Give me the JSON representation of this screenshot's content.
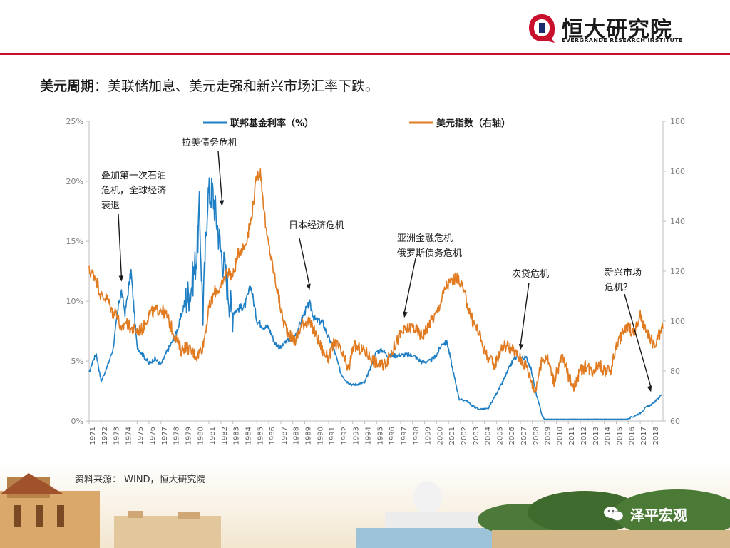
{
  "header": {
    "brand_cn": "恒大研究院",
    "brand_en": "EVERGRANDE RESEARCH INSTITUTE",
    "accent_color": "#c8102e"
  },
  "slide": {
    "title_bold": "美元周期",
    "title_rest": "：美联储加息、美元走强和新兴市场汇率下跌。",
    "source": "资料来源：  WIND，恒大研究院",
    "wechat": "泽平宏观"
  },
  "chart_data": {
    "type": "line",
    "title": "",
    "x_range": [
      1971,
      2018.9
    ],
    "x_ticks": [
      "1971",
      "1972",
      "1973",
      "1974",
      "1975",
      "1976",
      "1977",
      "1978",
      "1979",
      "1980",
      "1981",
      "1982",
      "1983",
      "1984",
      "1985",
      "1986",
      "1987",
      "1988",
      "1989",
      "1990",
      "1991",
      "1992",
      "1993",
      "1994",
      "1995",
      "1996",
      "1997",
      "1998",
      "1999",
      "2000",
      "2001",
      "2002",
      "2003",
      "2004",
      "2005",
      "2006",
      "2007",
      "2008",
      "2009",
      "2010",
      "2011",
      "2012",
      "2013",
      "2014",
      "2015",
      "2016",
      "2017",
      "2018"
    ],
    "y_left": {
      "range": [
        0,
        25
      ],
      "ticks": [
        "0%",
        "5%",
        "10%",
        "15%",
        "20%",
        "25%"
      ],
      "tick_values": [
        0,
        5,
        10,
        15,
        20,
        25
      ]
    },
    "y_right": {
      "range": [
        60,
        180
      ],
      "ticks": [
        "60",
        "80",
        "100",
        "120",
        "140",
        "160",
        "180"
      ],
      "tick_values": [
        60,
        80,
        100,
        120,
        140,
        160,
        180
      ]
    },
    "grid": false,
    "legend_position": "top-center",
    "series": [
      {
        "name": "联邦基金利率（%）",
        "axis": "left",
        "color": "#1f7fc4",
        "points": [
          [
            1971.0,
            4.0
          ],
          [
            1971.3,
            5.0
          ],
          [
            1971.6,
            5.6
          ],
          [
            1972.0,
            3.3
          ],
          [
            1972.5,
            4.5
          ],
          [
            1973.0,
            6.0
          ],
          [
            1973.5,
            10.0
          ],
          [
            1973.7,
            10.8
          ],
          [
            1974.0,
            9.0
          ],
          [
            1974.5,
            12.5
          ],
          [
            1975.0,
            6.2
          ],
          [
            1975.5,
            5.5
          ],
          [
            1976.0,
            4.8
          ],
          [
            1976.5,
            5.2
          ],
          [
            1977.0,
            4.7
          ],
          [
            1977.5,
            5.8
          ],
          [
            1978.0,
            6.7
          ],
          [
            1978.5,
            8.0
          ],
          [
            1979.0,
            10.0
          ],
          [
            1979.5,
            11.0
          ],
          [
            1980.0,
            14.0
          ],
          [
            1980.2,
            17.6
          ],
          [
            1980.5,
            9.0
          ],
          [
            1980.9,
            18.9
          ],
          [
            1981.3,
            19.1
          ],
          [
            1981.5,
            17.8
          ],
          [
            1982.0,
            14.2
          ],
          [
            1982.5,
            11.6
          ],
          [
            1982.9,
            9.0
          ],
          [
            1983.5,
            9.4
          ],
          [
            1984.0,
            9.6
          ],
          [
            1984.5,
            11.3
          ],
          [
            1985.0,
            8.4
          ],
          [
            1985.5,
            7.9
          ],
          [
            1986.0,
            7.8
          ],
          [
            1986.5,
            6.5
          ],
          [
            1987.0,
            6.1
          ],
          [
            1987.5,
            6.7
          ],
          [
            1988.0,
            6.8
          ],
          [
            1988.5,
            7.8
          ],
          [
            1989.0,
            9.1
          ],
          [
            1989.4,
            9.8
          ],
          [
            1989.8,
            8.5
          ],
          [
            1990.5,
            8.2
          ],
          [
            1991.0,
            6.9
          ],
          [
            1991.5,
            5.8
          ],
          [
            1992.0,
            4.0
          ],
          [
            1992.5,
            3.3
          ],
          [
            1993.0,
            3.0
          ],
          [
            1994.0,
            3.2
          ],
          [
            1994.5,
            4.5
          ],
          [
            1995.0,
            5.8
          ],
          [
            1995.5,
            5.9
          ],
          [
            1996.0,
            5.4
          ],
          [
            1997.0,
            5.5
          ],
          [
            1998.0,
            5.5
          ],
          [
            1998.8,
            4.9
          ],
          [
            1999.5,
            5.0
          ],
          [
            2000.0,
            5.5
          ],
          [
            2000.5,
            6.5
          ],
          [
            2000.9,
            6.5
          ],
          [
            2001.3,
            4.5
          ],
          [
            2001.9,
            1.8
          ],
          [
            2002.5,
            1.7
          ],
          [
            2003.0,
            1.25
          ],
          [
            2003.5,
            1.0
          ],
          [
            2004.3,
            1.0
          ],
          [
            2005.0,
            2.3
          ],
          [
            2005.5,
            3.2
          ],
          [
            2006.0,
            4.3
          ],
          [
            2006.5,
            5.25
          ],
          [
            2007.5,
            5.25
          ],
          [
            2007.9,
            4.3
          ],
          [
            2008.3,
            2.3
          ],
          [
            2008.8,
            0.5
          ],
          [
            2009.0,
            0.15
          ],
          [
            2015.9,
            0.15
          ],
          [
            2016.5,
            0.4
          ],
          [
            2017.0,
            0.66
          ],
          [
            2017.5,
            1.15
          ],
          [
            2018.0,
            1.4
          ],
          [
            2018.5,
            1.9
          ],
          [
            2018.8,
            2.2
          ]
        ]
      },
      {
        "name": "美元指数（右轴）",
        "axis": "right",
        "color": "#e07b22",
        "points": [
          [
            1971.0,
            120
          ],
          [
            1971.5,
            118
          ],
          [
            1972.0,
            110
          ],
          [
            1972.5,
            109
          ],
          [
            1973.0,
            103
          ],
          [
            1973.3,
            104
          ],
          [
            1973.7,
            95
          ],
          [
            1974.0,
            100
          ],
          [
            1974.5,
            97
          ],
          [
            1975.0,
            96
          ],
          [
            1975.5,
            97
          ],
          [
            1976.0,
            103
          ],
          [
            1976.5,
            104
          ],
          [
            1977.0,
            105
          ],
          [
            1977.5,
            102
          ],
          [
            1978.0,
            96
          ],
          [
            1978.7,
            88
          ],
          [
            1979.0,
            90
          ],
          [
            1980.0,
            86
          ],
          [
            1980.5,
            90
          ],
          [
            1981.0,
            105
          ],
          [
            1981.5,
            112
          ],
          [
            1982.0,
            113
          ],
          [
            1982.5,
            120
          ],
          [
            1983.0,
            118
          ],
          [
            1983.5,
            128
          ],
          [
            1984.0,
            130
          ],
          [
            1984.5,
            140
          ],
          [
            1985.0,
            158
          ],
          [
            1985.3,
            160
          ],
          [
            1985.8,
            135
          ],
          [
            1986.2,
            125
          ],
          [
            1986.8,
            110
          ],
          [
            1987.2,
            100
          ],
          [
            1987.8,
            94
          ],
          [
            1988.2,
            92
          ],
          [
            1988.8,
            99
          ],
          [
            1989.3,
            100
          ],
          [
            1989.8,
            96
          ],
          [
            1990.5,
            88
          ],
          [
            1991.0,
            85
          ],
          [
            1991.5,
            92
          ],
          [
            1992.0,
            88
          ],
          [
            1992.7,
            80
          ],
          [
            1993.0,
            90
          ],
          [
            1994.0,
            88
          ],
          [
            1995.0,
            83
          ],
          [
            1995.5,
            82
          ],
          [
            1996.0,
            85
          ],
          [
            1997.0,
            95
          ],
          [
            1998.0,
            98
          ],
          [
            1998.8,
            94
          ],
          [
            1999.5,
            100
          ],
          [
            2000.0,
            103
          ],
          [
            2000.8,
            114
          ],
          [
            2001.5,
            117
          ],
          [
            2002.0,
            116
          ],
          [
            2002.5,
            108
          ],
          [
            2003.0,
            100
          ],
          [
            2003.5,
            96
          ],
          [
            2004.0,
            88
          ],
          [
            2004.8,
            82
          ],
          [
            2005.5,
            90
          ],
          [
            2006.0,
            90
          ],
          [
            2006.8,
            86
          ],
          [
            2007.5,
            82
          ],
          [
            2008.2,
            72
          ],
          [
            2008.8,
            84
          ],
          [
            2009.2,
            86
          ],
          [
            2009.8,
            76
          ],
          [
            2010.5,
            86
          ],
          [
            2011.0,
            78
          ],
          [
            2011.5,
            74
          ],
          [
            2012.0,
            80
          ],
          [
            2012.5,
            82
          ],
          [
            2013.0,
            80
          ],
          [
            2013.5,
            83
          ],
          [
            2014.0,
            80
          ],
          [
            2014.5,
            80
          ],
          [
            2015.0,
            90
          ],
          [
            2015.5,
            95
          ],
          [
            2016.0,
            98
          ],
          [
            2016.5,
            95
          ],
          [
            2017.0,
            102
          ],
          [
            2017.5,
            95
          ],
          [
            2017.9,
            93
          ],
          [
            2018.2,
            89
          ],
          [
            2018.5,
            94
          ],
          [
            2018.9,
            97
          ]
        ]
      }
    ],
    "annotations": [
      {
        "text": [
          "叠加第一次石油",
          "危机，全球经济",
          "衰退"
        ],
        "arrow_to": [
          1973.7,
          11.5
        ]
      },
      {
        "text": [
          "拉美债务危机"
        ],
        "arrow_to": [
          1982.1,
          17.8
        ]
      },
      {
        "text": [
          "日本经济危机"
        ],
        "arrow_to": [
          1989.4,
          10.8
        ]
      },
      {
        "text": [
          "亚洲金融危机",
          "俄罗斯债务危机"
        ],
        "arrow_to": [
          1997.3,
          8.5
        ]
      },
      {
        "text": [
          "次贷危机"
        ],
        "arrow_to": [
          2007.0,
          5.8
        ]
      },
      {
        "text": [
          "新兴市场",
          "危机？"
        ],
        "arrow_to": [
          2017.9,
          2.3
        ]
      }
    ]
  }
}
